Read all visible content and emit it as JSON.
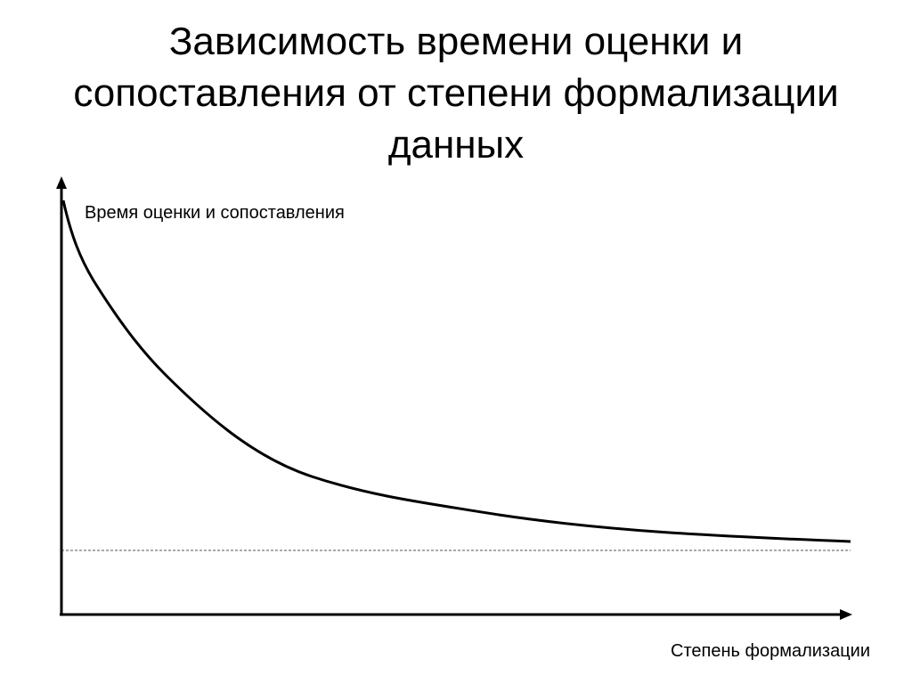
{
  "title": "Зависимость времени оценки и сопоставления от степени формализации данных",
  "y_axis_label": "Время оценки и сопоставления",
  "x_axis_label": "Степень формализации"
}
